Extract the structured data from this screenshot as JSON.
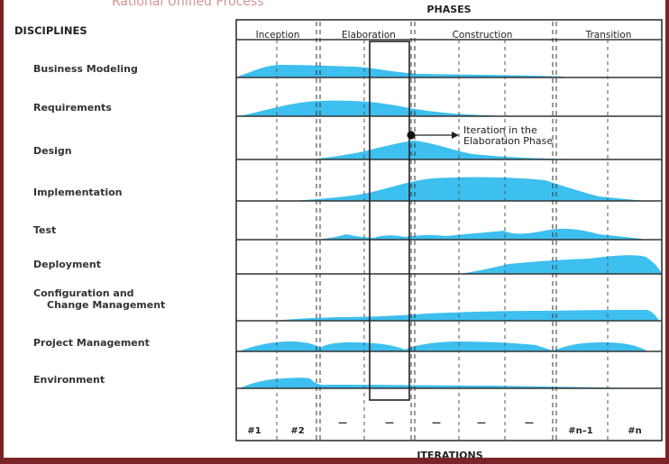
{
  "header": {
    "phases_title": "PHASES",
    "disciplines_title": "DISCIPLINES",
    "iterations_title": "ITERATIONS",
    "faded_text": "Rational Unified Process"
  },
  "phases": [
    "Inception",
    "Elaboration",
    "Construction",
    "Transition"
  ],
  "disciplines": [
    {
      "line1": "Business Modeling"
    },
    {
      "line1": "Requirements"
    },
    {
      "line1": "Design"
    },
    {
      "line1": "Implementation"
    },
    {
      "line1": "Test"
    },
    {
      "line1": "Deployment"
    },
    {
      "line1": "Configuration and",
      "line2": "Change Management"
    },
    {
      "line1": "Project Management"
    },
    {
      "line1": "Environment"
    }
  ],
  "iterations": [
    "#1",
    "#2",
    "—",
    "—",
    "—",
    "—",
    "—",
    "#n–1",
    "#n"
  ],
  "annotation": {
    "line1": "Iteration in the",
    "line2": "Elaboration Phase"
  },
  "colors": {
    "hump": "#3dbfef",
    "grid": "#333333",
    "border": "#7a2428",
    "background": "#ffffff"
  }
}
